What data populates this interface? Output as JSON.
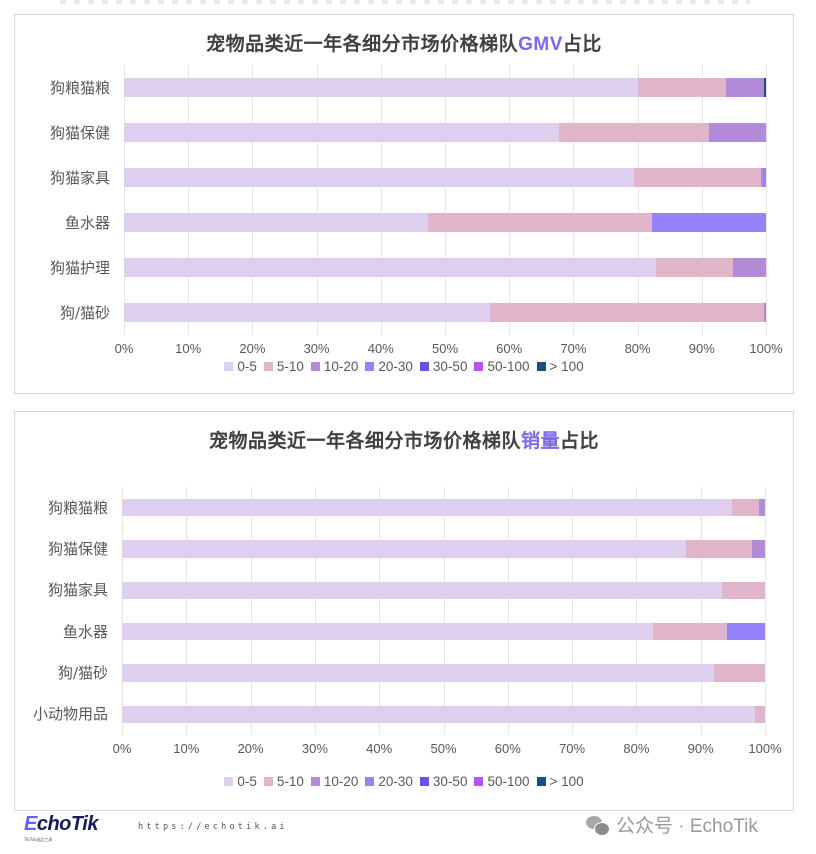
{
  "legend": [
    {
      "label": "0-5",
      "color": "#dfcfee"
    },
    {
      "label": "5-10",
      "color": "#e0b4c9"
    },
    {
      "label": "10-20",
      "color": "#b18ad8"
    },
    {
      "label": "20-30",
      "color": "#9483fb"
    },
    {
      "label": "30-50",
      "color": "#6552ef"
    },
    {
      "label": "50-100",
      "color": "#b655f2"
    },
    {
      "label": "> 100",
      "color": "#1f4e79"
    }
  ],
  "x_ticks": [
    "0%",
    "10%",
    "20%",
    "30%",
    "40%",
    "50%",
    "60%",
    "70%",
    "80%",
    "90%",
    "100%"
  ],
  "charts": [
    {
      "title_prefix": "宠物品类近一年各细分市场价格梯队",
      "title_accent": "GMV",
      "title_suffix": "占比"
    },
    {
      "title_prefix": "宠物品类近一年各细分市场价格梯队",
      "title_accent": "销量",
      "title_suffix": "占比"
    }
  ],
  "chart_data": [
    {
      "type": "bar",
      "orientation": "horizontal",
      "stacked": "percent",
      "title": "宠物品类近一年各细分市场价格梯队GMV占比",
      "xlabel": "",
      "ylabel": "",
      "xlim": [
        0,
        100
      ],
      "grid": true,
      "legend_position": "bottom",
      "categories": [
        "狗粮猫粮",
        "狗猫保健",
        "狗猫家具",
        "鱼水器",
        "狗猫护理",
        "狗/猫砂"
      ],
      "series": [
        {
          "name": "0-5",
          "values": [
            80.0,
            67.8,
            79.5,
            47.4,
            82.8,
            57.0
          ]
        },
        {
          "name": "5-10",
          "values": [
            13.8,
            23.4,
            19.7,
            34.9,
            12.1,
            42.7
          ]
        },
        {
          "name": "10-20",
          "values": [
            5.9,
            8.8,
            0.3,
            0.0,
            5.1,
            0.3
          ]
        },
        {
          "name": "20-30",
          "values": [
            0.0,
            0.0,
            0.5,
            17.7,
            0.0,
            0.0
          ]
        },
        {
          "name": "30-50",
          "values": [
            0.0,
            0.0,
            0.0,
            0.0,
            0.0,
            0.0
          ]
        },
        {
          "name": "50-100",
          "values": [
            0.0,
            0.0,
            0.0,
            0.0,
            0.0,
            0.0
          ]
        },
        {
          "name": "> 100",
          "values": [
            0.3,
            0.0,
            0.0,
            0.0,
            0.0,
            0.0
          ]
        }
      ]
    },
    {
      "type": "bar",
      "orientation": "horizontal",
      "stacked": "percent",
      "title": "宠物品类近一年各细分市场价格梯队销量占比",
      "xlabel": "",
      "ylabel": "",
      "xlim": [
        0,
        100
      ],
      "grid": true,
      "legend_position": "bottom",
      "categories": [
        "狗粮猫粮",
        "狗猫保健",
        "狗猫家具",
        "鱼水器",
        "狗/猫砂",
        "小动物用品"
      ],
      "series": [
        {
          "name": "0-5",
          "values": [
            94.9,
            87.7,
            93.3,
            82.6,
            92.0,
            98.4
          ]
        },
        {
          "name": "5-10",
          "values": [
            4.1,
            10.3,
            6.7,
            11.5,
            8.0,
            1.6
          ]
        },
        {
          "name": "10-20",
          "values": [
            1.0,
            2.0,
            0.0,
            0.0,
            0.0,
            0.0
          ]
        },
        {
          "name": "20-30",
          "values": [
            0.0,
            0.0,
            0.0,
            5.9,
            0.0,
            0.0
          ]
        },
        {
          "name": "30-50",
          "values": [
            0.0,
            0.0,
            0.0,
            0.0,
            0.0,
            0.0
          ]
        },
        {
          "name": "50-100",
          "values": [
            0.0,
            0.0,
            0.0,
            0.0,
            0.0,
            0.0
          ]
        },
        {
          "name": "> 100",
          "values": [
            0.0,
            0.0,
            0.0,
            0.0,
            0.0,
            0.0
          ]
        }
      ]
    }
  ],
  "footer": {
    "logo_text": "choTik",
    "logo_initial": "E",
    "logo_subtitle": "TikTok选品工具",
    "url": "https://echotik.ai",
    "wechat_label": "公众号 · EchoTik"
  }
}
